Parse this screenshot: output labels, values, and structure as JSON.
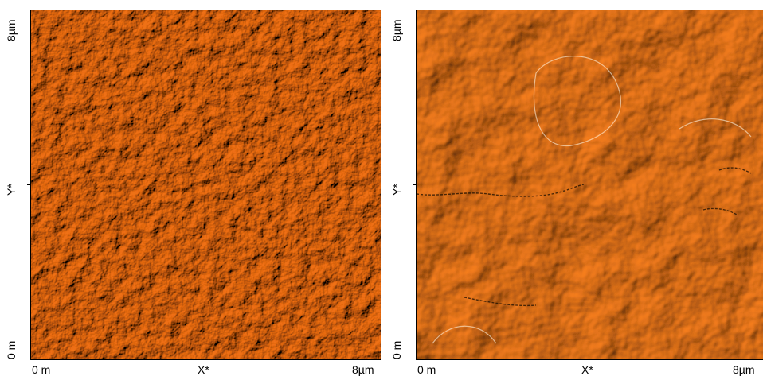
{
  "colors": {
    "base": "#e07a1f",
    "highlight": "#ffe3bf",
    "shadow": "#7a3200"
  },
  "panels": [
    {
      "y_top": "8µm",
      "y_mid": "Y*",
      "y_bottom": "0 m",
      "x_left": "0 m",
      "x_mid": "X*",
      "x_right": "8µm",
      "texture": "fine-grain"
    },
    {
      "y_top": "8µm",
      "y_mid": "Y*",
      "y_bottom": "0 m",
      "x_left": "0 m",
      "x_mid": "X*",
      "x_right": "8µm",
      "texture": "coarse-domains"
    }
  ]
}
